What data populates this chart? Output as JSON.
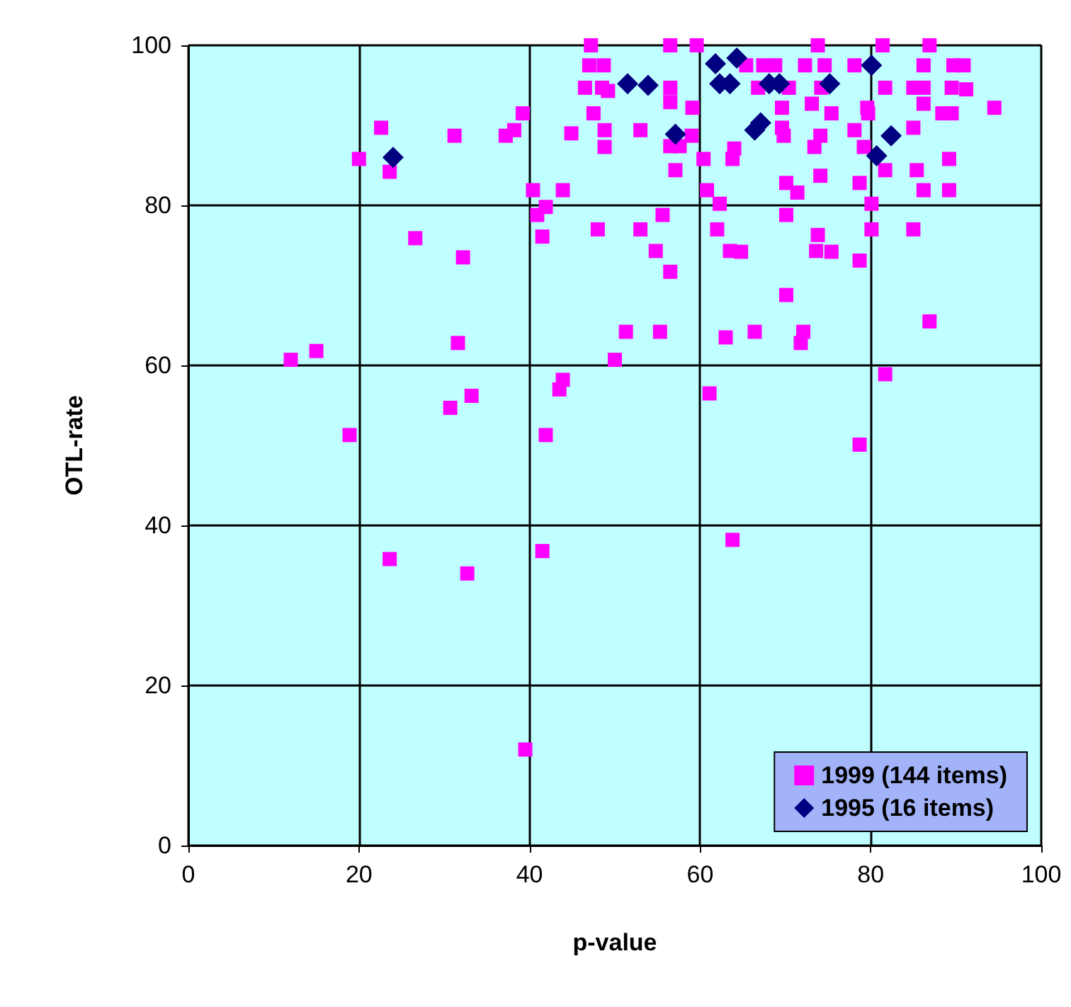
{
  "chart_data": {
    "type": "scatter",
    "xlabel": "p-value",
    "ylabel": "OTL-rate",
    "xlim": [
      0,
      100
    ],
    "ylim": [
      0,
      100
    ],
    "xticks": [
      0,
      20,
      40,
      60,
      80,
      100
    ],
    "yticks": [
      0,
      20,
      40,
      60,
      80,
      100
    ],
    "grid": true,
    "legend": "bottom right",
    "series": [
      {
        "name": "1999 (144 items)",
        "color": "#ff00ff",
        "marker": "square",
        "x": [
          12,
          15,
          18.9,
          20,
          22.6,
          23.6,
          23.6,
          26.6,
          31.2,
          30.7,
          31.6,
          32.2,
          32.7,
          33.2,
          37.2,
          38.2,
          39.2,
          39.5,
          40.4,
          40.9,
          41.5,
          41.9,
          41.9,
          41.5,
          43.5,
          43.9,
          43.9,
          44.9,
          47.2,
          56.5,
          59.6,
          47,
          48.7,
          46.5,
          48.5,
          49.2,
          56.5,
          56.5,
          59.1,
          47.5,
          48.8,
          48.8,
          53,
          56.5,
          57.6,
          57.1,
          59,
          60.4,
          63.8,
          60.8,
          62.3,
          48,
          53,
          55.6,
          54.8,
          56.5,
          62,
          63.5,
          73.8,
          81.4,
          86.9,
          65.4,
          67.4,
          68.8,
          72.3,
          74.6,
          78.1,
          86.2,
          89.7,
          90.9,
          66.8,
          70.4,
          74.2,
          81.7,
          85,
          86.2,
          89.5,
          91.2,
          69.6,
          73.1,
          75.4,
          79.6,
          79.7,
          86.2,
          88.4,
          89.5,
          94.5,
          69.6,
          69.8,
          74.1,
          78.1,
          73.4,
          79.2,
          85,
          64,
          74.1,
          78.7,
          81.7,
          85.4,
          89.2,
          86.2,
          89.2,
          70.1,
          71.4,
          80.1,
          70.1,
          80.1,
          85,
          73.8,
          73.6,
          75.4,
          64.8,
          78.7,
          70.1,
          86.9,
          51.3,
          55.3,
          63,
          66.4,
          72.1,
          71.8,
          50,
          81.7,
          61.1,
          78.7,
          63.8
        ],
        "values": [
          60.7,
          61.8,
          51.3,
          85.8,
          89.7,
          84.2,
          35.8,
          75.9,
          88.7,
          54.7,
          62.8,
          73.5,
          34,
          56.2,
          88.7,
          89.4,
          91.5,
          12,
          81.9,
          78.8,
          76.1,
          79.8,
          51.3,
          36.8,
          57,
          58.2,
          81.9,
          89,
          100,
          100,
          100,
          97.5,
          97.5,
          94.7,
          94.7,
          94.3,
          94.7,
          92.9,
          92.2,
          91.5,
          89.4,
          87.3,
          89.4,
          87.4,
          87.4,
          84.4,
          88.7,
          85.8,
          85.8,
          81.9,
          80.2,
          77,
          77,
          78.8,
          74.3,
          71.7,
          77,
          74.3,
          100,
          100,
          100,
          97.5,
          97.5,
          97.5,
          97.5,
          97.5,
          97.5,
          97.5,
          97.5,
          97.5,
          94.7,
          94.7,
          94.7,
          94.7,
          94.7,
          94.7,
          94.7,
          94.5,
          92.2,
          92.7,
          91.5,
          92.2,
          91.5,
          92.7,
          91.5,
          91.5,
          92.2,
          89.7,
          88.7,
          88.7,
          89.4,
          87.3,
          87.3,
          89.7,
          87.1,
          83.7,
          82.8,
          84.4,
          84.4,
          85.8,
          81.9,
          81.9,
          82.8,
          81.6,
          80.2,
          78.8,
          77,
          77,
          76.3,
          74.3,
          74.2,
          74.2,
          73.1,
          68.8,
          65.5,
          64.2,
          64.2,
          63.5,
          64.2,
          64.2,
          62.8,
          60.7,
          58.9,
          56.5,
          50.1,
          38.2
        ]
      },
      {
        "name": "1995 (16 items)",
        "color": "#000080",
        "marker": "diamond",
        "x": [
          24,
          51.5,
          53.9,
          57.1,
          64.3,
          61.8,
          62.3,
          63.5,
          68.1,
          69.3,
          75.2,
          80.1,
          66.4,
          67.1,
          82.4,
          80.7
        ],
        "values": [
          86,
          95.2,
          95,
          88.9,
          98.4,
          97.7,
          95.2,
          95.2,
          95.2,
          95.2,
          95.2,
          97.5,
          89.4,
          90.3,
          88.7,
          86.2
        ]
      }
    ]
  }
}
